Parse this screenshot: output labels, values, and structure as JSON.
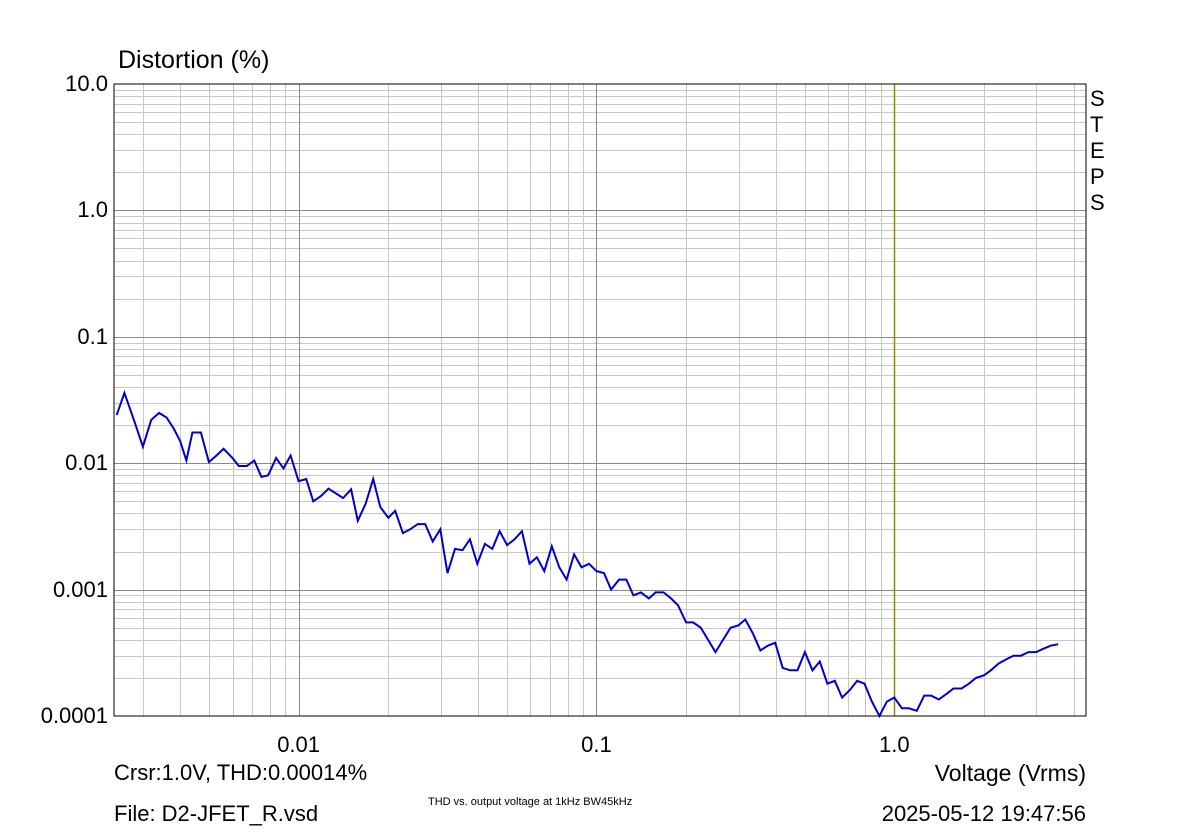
{
  "chart_data": {
    "type": "line",
    "title": "Distortion (%)",
    "xlabel": "Voltage (Vrms)",
    "ylabel": "Distortion (%)",
    "x_scale": "log",
    "y_scale": "log",
    "xlim": [
      0.0024,
      4.4
    ],
    "ylim": [
      0.0001,
      10.0
    ],
    "grid": true,
    "x_ticks": [
      {
        "value": 0.01,
        "label": "0.01"
      },
      {
        "value": 0.1,
        "label": "0.1"
      },
      {
        "value": 1.0,
        "label": "1.0"
      }
    ],
    "y_ticks": [
      {
        "value": 10.0,
        "label": "10.0"
      },
      {
        "value": 1.0,
        "label": "1.0"
      },
      {
        "value": 0.1,
        "label": "0.1"
      },
      {
        "value": 0.01,
        "label": "0.01"
      },
      {
        "value": 0.001,
        "label": "0.001"
      },
      {
        "value": 0.0001,
        "label": "0.0001"
      }
    ],
    "cursor": {
      "x": 1.0,
      "label": "Crsr:1.0V, THD:0.00014%",
      "color": "#8c8c00"
    },
    "side_label": [
      "S",
      "T",
      "E",
      "P",
      "S"
    ],
    "series": [
      {
        "color": "#0000cc",
        "x": [
          0.00245,
          0.0026,
          0.0028,
          0.003,
          0.0032,
          0.0034,
          0.0036,
          0.0038,
          0.004,
          0.0042,
          0.0044,
          0.0047,
          0.005,
          0.0053,
          0.0056,
          0.006,
          0.0063,
          0.0067,
          0.0071,
          0.0075,
          0.0079,
          0.0084,
          0.0089,
          0.0094,
          0.01,
          0.0106,
          0.0112,
          0.0119,
          0.0126,
          0.0133,
          0.0141,
          0.015,
          0.0158,
          0.0168,
          0.0178,
          0.0188,
          0.02,
          0.0211,
          0.0224,
          0.0237,
          0.0251,
          0.0266,
          0.0282,
          0.0299,
          0.0316,
          0.0335,
          0.0355,
          0.0376,
          0.0398,
          0.0422,
          0.0447,
          0.0473,
          0.0501,
          0.0531,
          0.0562,
          0.0596,
          0.0631,
          0.0668,
          0.0708,
          0.075,
          0.0794,
          0.0841,
          0.0891,
          0.0944,
          0.1,
          0.106,
          0.112,
          0.119,
          0.126,
          0.133,
          0.141,
          0.15,
          0.158,
          0.168,
          0.178,
          0.188,
          0.2,
          0.211,
          0.224,
          0.237,
          0.251,
          0.266,
          0.282,
          0.299,
          0.316,
          0.335,
          0.355,
          0.376,
          0.398,
          0.422,
          0.447,
          0.473,
          0.501,
          0.531,
          0.562,
          0.596,
          0.631,
          0.668,
          0.708,
          0.75,
          0.794,
          0.841,
          0.891,
          0.944,
          1.0,
          1.06,
          1.12,
          1.19,
          1.26,
          1.33,
          1.41,
          1.5,
          1.58,
          1.68,
          1.78,
          1.88,
          2.0,
          2.11,
          2.24,
          2.37,
          2.51,
          2.66,
          2.82,
          2.99,
          3.16,
          3.35,
          3.55
        ],
        "y": [
          0.024,
          0.036,
          0.022,
          0.0135,
          0.022,
          0.025,
          0.023,
          0.019,
          0.015,
          0.0105,
          0.0175,
          0.0175,
          0.0102,
          0.0115,
          0.013,
          0.011,
          0.0095,
          0.0095,
          0.0105,
          0.0078,
          0.008,
          0.011,
          0.0091,
          0.0115,
          0.0072,
          0.0075,
          0.005,
          0.0055,
          0.0063,
          0.0058,
          0.0053,
          0.0062,
          0.0035,
          0.0048,
          0.0075,
          0.0045,
          0.0037,
          0.0042,
          0.0028,
          0.003,
          0.0033,
          0.0033,
          0.0024,
          0.003,
          0.00135,
          0.0021,
          0.00205,
          0.0025,
          0.0016,
          0.0023,
          0.0021,
          0.0029,
          0.00225,
          0.0025,
          0.0029,
          0.0016,
          0.0018,
          0.0014,
          0.0022,
          0.0015,
          0.0012,
          0.0019,
          0.0015,
          0.0016,
          0.0014,
          0.00135,
          0.001,
          0.0012,
          0.0012,
          0.0009,
          0.00095,
          0.00085,
          0.00095,
          0.00095,
          0.00085,
          0.00075,
          0.00055,
          0.00055,
          0.0005,
          0.0004,
          0.00032,
          0.0004,
          0.0005,
          0.00052,
          0.00058,
          0.00045,
          0.00033,
          0.00036,
          0.00038,
          0.00024,
          0.00023,
          0.00023,
          0.00032,
          0.00023,
          0.00027,
          0.00018,
          0.00019,
          0.00014,
          0.00016,
          0.00019,
          0.00018,
          0.00013,
          0.0001,
          0.00013,
          0.00014,
          0.000115,
          0.000115,
          0.00011,
          0.000145,
          0.000145,
          0.000135,
          0.00015,
          0.000165,
          0.000165,
          0.00018,
          0.0002,
          0.00021,
          0.00023,
          0.00026,
          0.00028,
          0.0003,
          0.0003,
          0.00032,
          0.00032,
          0.00034,
          0.00036,
          0.00037
        ]
      }
    ]
  },
  "footer": {
    "cursor_readout": "Crsr:1.0V, THD:0.00014%",
    "file": "File: D2-JFET_R.vsd",
    "caption": "THD vs. output voltage at 1kHz  BW45kHz",
    "timestamp": "2025-05-12  19:47:56"
  }
}
